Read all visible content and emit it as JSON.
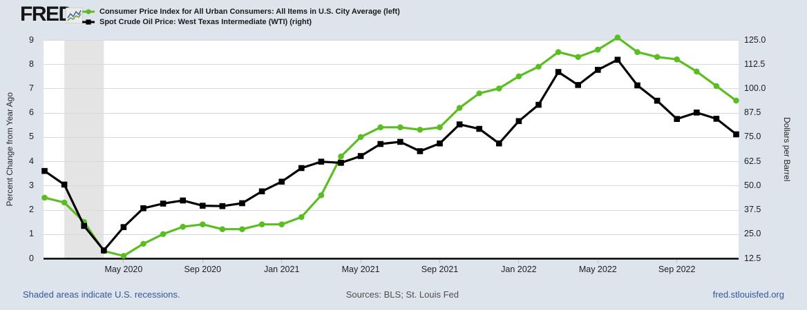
{
  "header": {
    "logo_text": "FRED",
    "logo_reg": "®",
    "legend": [
      {
        "label": "Consumer Price Index for All Urban Consumers: All Items in U.S. City Average (left)"
      },
      {
        "label": "Spot Crude Oil Price: West Texas Intermediate (WTI) (right)"
      }
    ]
  },
  "footer": {
    "recession_note": "Shaded areas indicate U.S. recessions.",
    "sources": "Sources: BLS; St. Louis Fed",
    "site": "fred.stlouisfed.org"
  },
  "colors": {
    "cpi_green": "#5abe23",
    "wti_black": "#000000",
    "recession_gray": "#e4e4e4",
    "grid_gray": "#d8d8d8",
    "axis_line_black": "#000000",
    "page_bg": "#dde4ec",
    "plot_bg": "#ffffff",
    "link_blue": "#32579d",
    "tick_text": "#202020"
  },
  "chart_data": {
    "type": "line",
    "title": "",
    "x": [
      "2020-01",
      "2020-02",
      "2020-03",
      "2020-04",
      "2020-05",
      "2020-06",
      "2020-07",
      "2020-08",
      "2020-09",
      "2020-10",
      "2020-11",
      "2020-12",
      "2021-01",
      "2021-02",
      "2021-03",
      "2021-04",
      "2021-05",
      "2021-06",
      "2021-07",
      "2021-08",
      "2021-09",
      "2021-10",
      "2021-11",
      "2021-12",
      "2022-01",
      "2022-02",
      "2022-03",
      "2022-04",
      "2022-05",
      "2022-06",
      "2022-07",
      "2022-08",
      "2022-09",
      "2022-10",
      "2022-11",
      "2022-12"
    ],
    "series": [
      {
        "id": "cpi",
        "name": "Consumer Price Index for All Urban Consumers: All Items in U.S. City Average",
        "axis": "left",
        "units": "Percent Change from Year Ago",
        "marker": "circle",
        "color_key": "cpi_green",
        "values": [
          2.5,
          2.3,
          1.5,
          0.3,
          0.1,
          0.6,
          1.0,
          1.3,
          1.4,
          1.2,
          1.2,
          1.4,
          1.4,
          1.7,
          2.6,
          4.2,
          5.0,
          5.4,
          5.4,
          5.3,
          5.4,
          6.2,
          6.8,
          7.0,
          7.5,
          7.9,
          8.5,
          8.3,
          8.6,
          9.1,
          8.5,
          8.3,
          8.2,
          7.7,
          7.1,
          6.5
        ]
      },
      {
        "id": "wti",
        "name": "Spot Crude Oil Price: West Texas Intermediate (WTI)",
        "axis": "right",
        "units": "Dollars per Barrel",
        "marker": "square",
        "color_key": "wti_black",
        "values": [
          57.5,
          50.5,
          29.2,
          16.6,
          28.6,
          38.3,
          40.7,
          42.3,
          39.6,
          39.4,
          40.9,
          47.0,
          52.0,
          59.0,
          62.3,
          61.7,
          65.2,
          71.4,
          72.5,
          67.7,
          71.7,
          81.5,
          79.2,
          71.7,
          83.2,
          91.6,
          108.5,
          101.8,
          109.6,
          114.8,
          101.6,
          93.7,
          84.3,
          87.6,
          84.4,
          76.4
        ]
      }
    ],
    "left_axis": {
      "title": "Percent Change from Year Ago",
      "min": 0,
      "max": 9,
      "ticks": [
        "0",
        "1",
        "2",
        "3",
        "4",
        "5",
        "6",
        "7",
        "8",
        "9"
      ]
    },
    "right_axis": {
      "title": "Dollars per Barrel",
      "min": 12.5,
      "max": 125.0,
      "ticks": [
        "12.5",
        "25.0",
        "37.5",
        "50.0",
        "62.5",
        "75.0",
        "87.5",
        "100.0",
        "112.5",
        "125.0"
      ]
    },
    "x_ticks": [
      {
        "index": 4,
        "label": "May 2020"
      },
      {
        "index": 8,
        "label": "Sep 2020"
      },
      {
        "index": 12,
        "label": "Jan 2021"
      },
      {
        "index": 16,
        "label": "May 2021"
      },
      {
        "index": 20,
        "label": "Sep 2021"
      },
      {
        "index": 24,
        "label": "Jan 2022"
      },
      {
        "index": 28,
        "label": "May 2022"
      },
      {
        "index": 32,
        "label": "Sep 2022"
      }
    ],
    "recession_bands": [
      {
        "start": "2020-02",
        "end": "2020-04",
        "start_index": 1,
        "end_index": 3
      }
    ],
    "grid": true,
    "legend_position": "top-left"
  }
}
